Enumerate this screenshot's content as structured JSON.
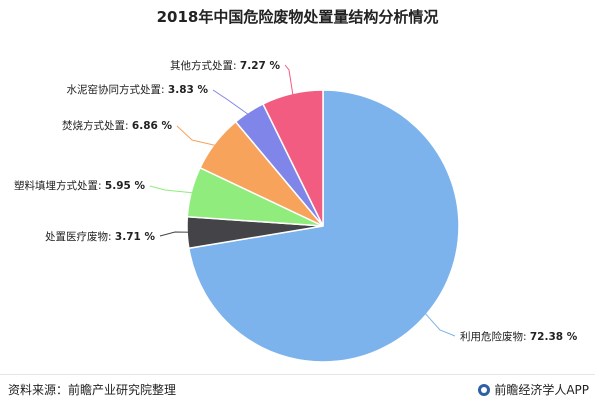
{
  "chart_data": {
    "type": "pie",
    "title": "2018年中国危险废物处置量结构分析情况",
    "unit": "%",
    "slices": [
      {
        "label": "利用危险废物",
        "value": 72.38,
        "value_text": "72.38 %",
        "color": "#7db3ec"
      },
      {
        "label": "处置医疗废物",
        "value": 3.71,
        "value_text": "3.71 %",
        "color": "#434348"
      },
      {
        "label": "塑料填埋方式处置",
        "value": 5.95,
        "value_text": "5.95 %",
        "color": "#90ed7d"
      },
      {
        "label": "焚烧方式处置",
        "value": 6.86,
        "value_text": "6.86 %",
        "color": "#f7a35c"
      },
      {
        "label": "水泥窑协同方式处置",
        "value": 3.83,
        "value_text": "3.83 %",
        "color": "#8085e9"
      },
      {
        "label": "其他方式处置",
        "value": 7.27,
        "value_text": "7.27 %",
        "color": "#f15c80"
      }
    ]
  },
  "footer": {
    "source": "资料来源：前瞻产业研究院整理",
    "brand": "前瞻经济学人APP"
  }
}
